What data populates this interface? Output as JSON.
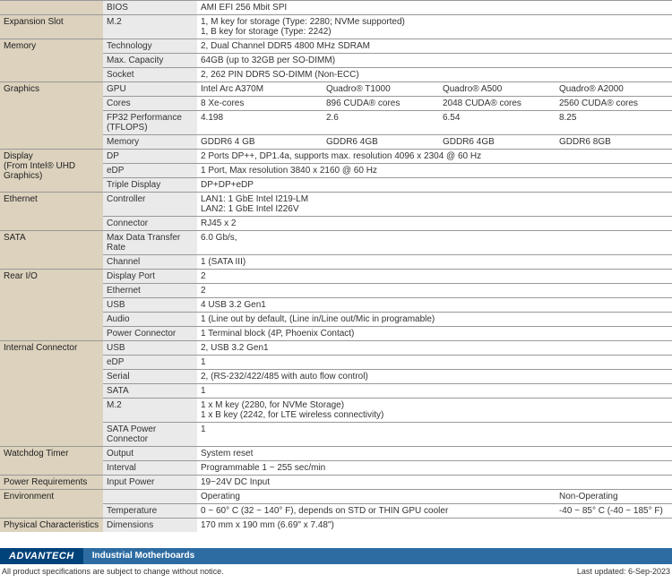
{
  "colors": {
    "category_bg": "#dcd2bd",
    "sub_bg": "#eaeaea",
    "border": "#999999",
    "logo_bg": "#00427a",
    "bar_bg": "#2d6ca2"
  },
  "rows": [
    {
      "cat": "",
      "sub": "BIOS",
      "vals": [
        "AMI EFI 256 Mbit SPI"
      ],
      "catRowspan": 1,
      "hideCat": true
    },
    {
      "cat": "Expansion Slot",
      "sub": "M.2",
      "vals": [
        "1, M key for storage (Type: 2280; NVMe supported)\n1, B key for storage (Type: 2242)"
      ],
      "catRowspan": 1
    },
    {
      "cat": "Memory",
      "sub": "Technology",
      "vals": [
        "2, Dual Channel DDR5 4800 MHz SDRAM"
      ],
      "catRowspan": 3
    },
    {
      "sub": "Max. Capacity",
      "vals": [
        "64GB (up to 32GB per SO-DIMM)"
      ]
    },
    {
      "sub": "Socket",
      "vals": [
        "2, 262 PIN DDR5 SO-DIMM (Non-ECC)"
      ]
    },
    {
      "cat": "Graphics",
      "sub": "GPU",
      "cols4": [
        "Intel Arc A370M",
        "Quadro® T1000",
        "Quadro® A500",
        "Quadro® A2000"
      ],
      "catRowspan": 4
    },
    {
      "sub": "Cores",
      "cols4": [
        "8 Xe-cores",
        "896 CUDA® cores",
        "2048 CUDA® cores",
        "2560 CUDA® cores"
      ]
    },
    {
      "sub": "FP32 Performance (TFLOPS)",
      "cols4": [
        "4.198",
        "2.6",
        "6.54",
        "8.25"
      ]
    },
    {
      "sub": "Memory",
      "cols4": [
        "GDDR6 4 GB",
        "GDDR6 4GB",
        "GDDR6 4GB",
        "GDDR6 8GB"
      ]
    },
    {
      "cat": "Display\n(From Intel® UHD Graphics)",
      "sub": "DP",
      "vals": [
        "2 Ports DP++, DP1.4a, supports max. resolution 4096 x 2304 @ 60 Hz"
      ],
      "catRowspan": 3
    },
    {
      "sub": "eDP",
      "vals": [
        "1 Port, Max resolution 3840 x 2160 @ 60 Hz"
      ]
    },
    {
      "sub": "Triple Display",
      "vals": [
        "DP+DP+eDP"
      ]
    },
    {
      "cat": "Ethernet",
      "sub": "Controller",
      "vals": [
        "LAN1: 1 GbE Intel I219-LM\nLAN2: 1 GbE  Intel I226V"
      ],
      "catRowspan": 2
    },
    {
      "sub": "Connector",
      "vals": [
        "RJ45 x 2"
      ]
    },
    {
      "cat": "SATA",
      "sub": "Max Data Transfer Rate",
      "vals": [
        "6.0 Gb/s,"
      ],
      "catRowspan": 2
    },
    {
      "sub": "Channel",
      "vals": [
        "1 (SATA III)"
      ]
    },
    {
      "cat": "Rear I/O",
      "sub": "Display Port",
      "vals": [
        "2"
      ],
      "catRowspan": 5
    },
    {
      "sub": "Ethernet",
      "vals": [
        "2"
      ]
    },
    {
      "sub": "USB",
      "vals": [
        "4 USB 3.2 Gen1"
      ]
    },
    {
      "sub": "Audio",
      "vals": [
        "1 (Line out by default, (Line in/Line out/Mic in programable)"
      ]
    },
    {
      "sub": "Power Connector",
      "vals": [
        "1 Terminal block (4P, Phoenix Contact)"
      ]
    },
    {
      "cat": "Internal Connector",
      "sub": "USB",
      "vals": [
        "2, USB 3.2 Gen1"
      ],
      "catRowspan": 6
    },
    {
      "sub": "eDP",
      "vals": [
        "1"
      ]
    },
    {
      "sub": "Serial",
      "vals": [
        "2, (RS-232/422/485 with auto flow control)"
      ]
    },
    {
      "sub": "SATA",
      "vals": [
        "1"
      ]
    },
    {
      "sub": "M.2",
      "vals": [
        "1 x M key (2280, for NVMe Storage)\n1 x B key (2242, for LTE wireless connectivity)"
      ]
    },
    {
      "sub": "SATA Power Connector",
      "vals": [
        "1"
      ]
    },
    {
      "cat": "Watchdog Timer",
      "sub": "Output",
      "vals": [
        "System reset"
      ],
      "catRowspan": 2
    },
    {
      "sub": "Interval",
      "vals": [
        "Programmable 1 ~ 255 sec/min"
      ]
    },
    {
      "cat": "Power Requirements",
      "sub": "Input Power",
      "vals": [
        "19~24V DC Input"
      ],
      "catRowspan": 1
    },
    {
      "cat": "Environment",
      "sub": "",
      "cols4": [
        "Operating",
        "",
        "",
        "Non-Operating"
      ],
      "catRowspan": 2,
      "noSub": true
    },
    {
      "sub": "Temperature",
      "cols4": [
        "0 ~ 60° C (32 ~ 140° F), depends on  STD or THIN GPU cooler",
        "",
        "",
        "-40 ~ 85° C (-40 ~ 185° F)"
      ],
      "mergeFirst3": true
    },
    {
      "cat": "Physical Characteristics",
      "sub": "Dimensions",
      "vals": [
        "170 mm x 190 mm (6.69\" x 7.48\")"
      ],
      "catRowspan": 1
    }
  ],
  "footer": {
    "logo": "ADVANTECH",
    "bar": "Industrial Motherboards",
    "left": "All product specifications are subject to change without notice.",
    "right": "Last updated: 6-Sep-2023"
  }
}
